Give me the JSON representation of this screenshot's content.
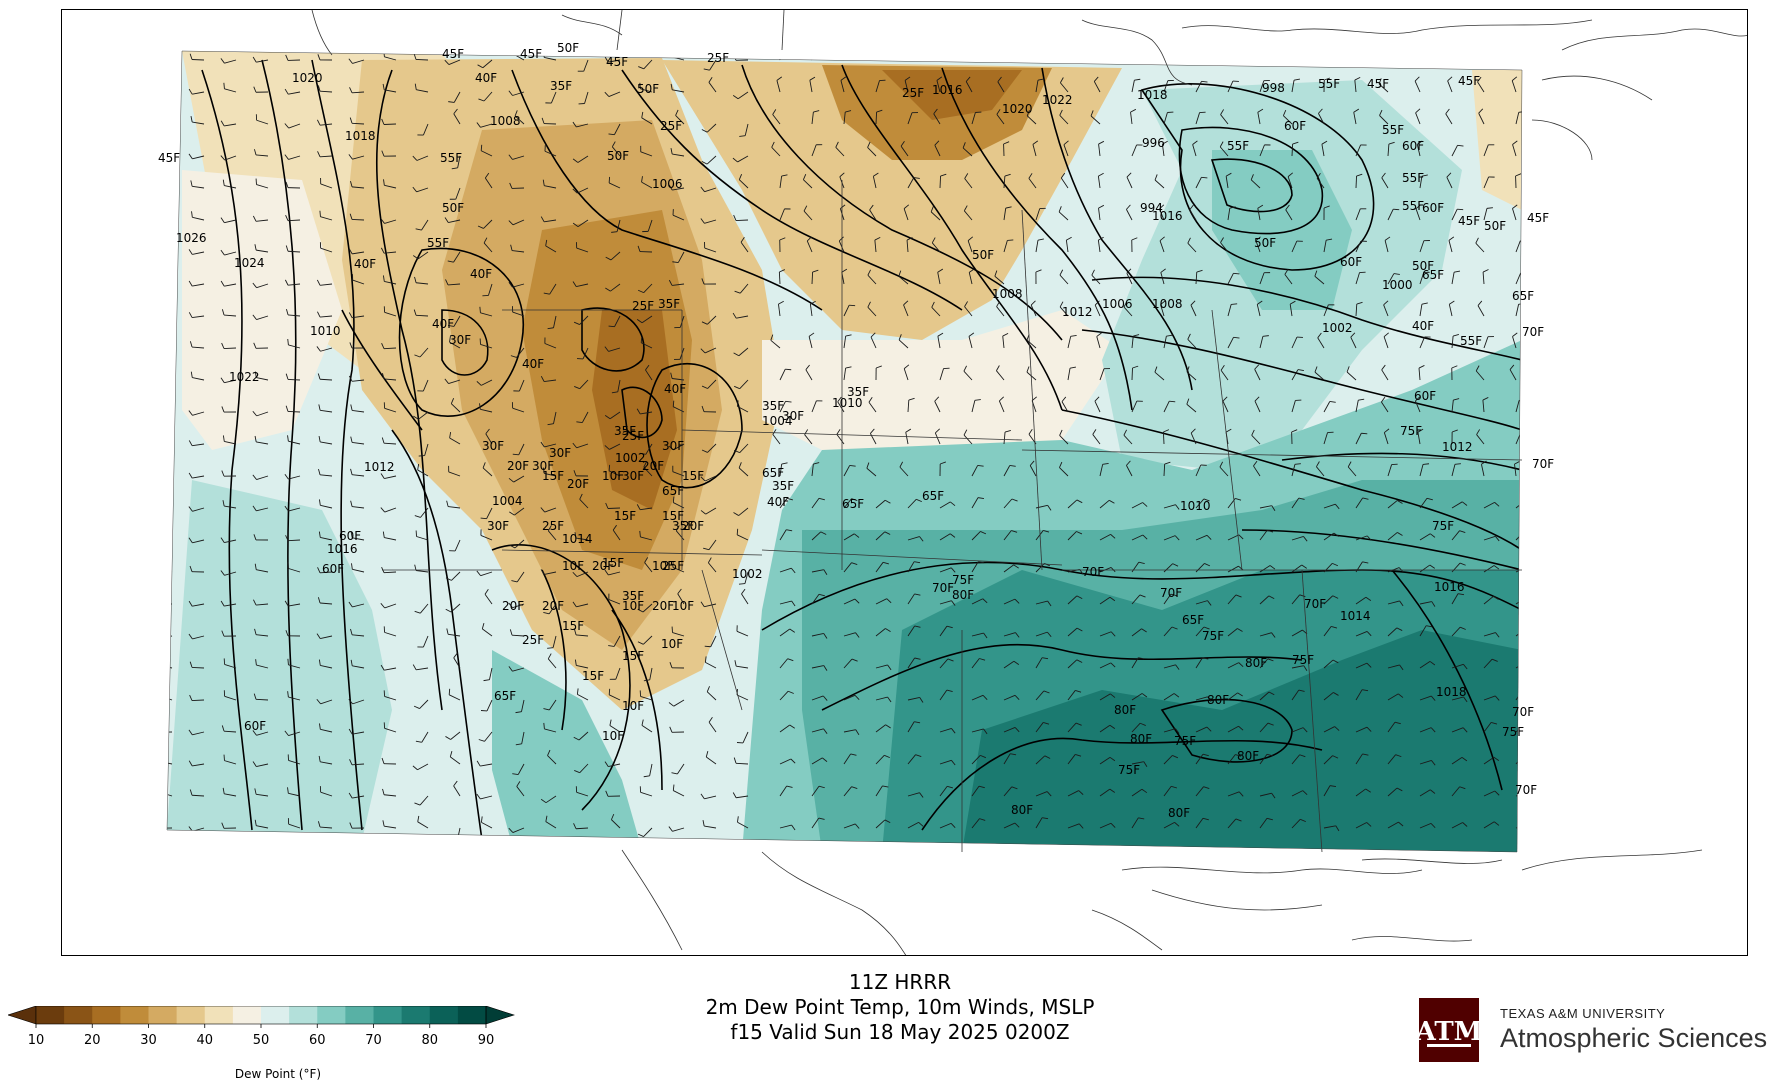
{
  "title": {
    "line1": "11Z HRRR",
    "line2": "2m Dew Point Temp, 10m Winds, MSLP",
    "line3": "f15 Valid Sun 18 May 2025 0200Z"
  },
  "colorbar": {
    "label": "Dew Point (°F)",
    "ticks": [
      "10",
      "20",
      "30",
      "40",
      "50",
      "60",
      "70",
      "80",
      "90"
    ],
    "colors": [
      "#6b3c0d",
      "#8a5416",
      "#a86e22",
      "#c08c3a",
      "#d4aa62",
      "#e5c88c",
      "#f1e1b9",
      "#f5f0e3",
      "#dcefed",
      "#b3e0da",
      "#84ccc2",
      "#58b1a5",
      "#33958a",
      "#1b7a70",
      "#0b6158",
      "#024b43"
    ],
    "extend_low_color": "#5a300b",
    "extend_high_color": "#013d36"
  },
  "branding": {
    "university": "TEXAS A&M UNIVERSITY",
    "department": "Atmospheric Sciences",
    "logo_text": "ATM",
    "logo_color": "#500000"
  },
  "pressure_labels": [
    "1020",
    "1018",
    "1026",
    "1024",
    "1022",
    "1012",
    "1016",
    "1010",
    "1008",
    "1006",
    "1004",
    "1002",
    "1014",
    "1016",
    "1022",
    "1020",
    "1018",
    "1016",
    "1012",
    "1010",
    "1008",
    "1006",
    "1004",
    "1002",
    "998",
    "996",
    "994",
    "1000",
    "1002",
    "1012",
    "1016",
    "1014",
    "1018",
    "1010",
    "1008"
  ],
  "dewpoint_labels": [
    "45F",
    "50F",
    "55F",
    "60F",
    "65F",
    "70F",
    "75F",
    "80F",
    "40F",
    "35F",
    "30F",
    "25F",
    "20F",
    "15F",
    "10F"
  ]
}
